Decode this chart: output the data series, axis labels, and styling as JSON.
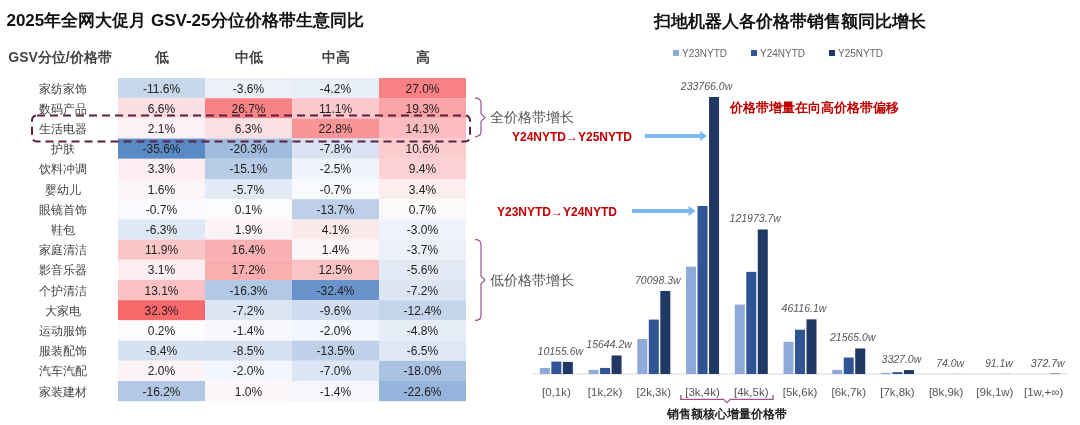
{
  "chart_data": [
    {
      "type": "heatmap",
      "title": "2025年全网大促月 GSV-25分位价格带生意同比",
      "ylabel": "GSV分位/价格带",
      "categories": [
        "低",
        "中低",
        "中高",
        "高"
      ],
      "y_categories": [
        "家纺家饰",
        "数码产品",
        "生活电器",
        "护肤",
        "饮料冲调",
        "婴幼儿",
        "眼镜首饰",
        "鞋包",
        "家庭清洁",
        "影音乐器",
        "个护清洁",
        "大家电",
        "运动服饰",
        "服装配饰",
        "汽车汽配",
        "家装建材"
      ],
      "cells": [
        [
          -11.6,
          -3.6,
          -4.2,
          27.0
        ],
        [
          6.6,
          26.7,
          11.1,
          19.3
        ],
        [
          2.1,
          6.3,
          22.8,
          14.1
        ],
        [
          -35.6,
          -20.3,
          -7.8,
          10.6
        ],
        [
          3.3,
          -15.1,
          -2.5,
          9.4
        ],
        [
          1.6,
          -5.7,
          -0.7,
          3.4
        ],
        [
          -0.7,
          0.1,
          -13.7,
          0.7
        ],
        [
          -6.3,
          1.9,
          4.1,
          -3.0
        ],
        [
          11.9,
          16.4,
          1.4,
          -3.7
        ],
        [
          3.1,
          17.2,
          12.5,
          -5.6
        ],
        [
          13.1,
          -16.3,
          -32.4,
          -7.2
        ],
        [
          32.3,
          -7.2,
          -9.6,
          -12.4
        ],
        [
          0.2,
          -1.4,
          -2.0,
          -4.8
        ],
        [
          -8.4,
          -8.5,
          -13.5,
          -6.5
        ],
        [
          2.0,
          -2.0,
          -7.0,
          -18.0
        ],
        [
          -16.2,
          1.0,
          -1.4,
          -22.6
        ]
      ],
      "cell_labels": [
        [
          "-11.6%",
          "-3.6%",
          "-4.2%",
          "27.0%"
        ],
        [
          "6.6%",
          "26.7%",
          "11.1%",
          "19.3%"
        ],
        [
          "2.1%",
          "6.3%",
          "22.8%",
          "14.1%"
        ],
        [
          "-35.6%",
          "-20.3%",
          "-7.8%",
          "10.6%"
        ],
        [
          "3.3%",
          "-15.1%",
          "-2.5%",
          "9.4%"
        ],
        [
          "1.6%",
          "-5.7%",
          "-0.7%",
          "3.4%"
        ],
        [
          "-0.7%",
          "0.1%",
          "-13.7%",
          "0.7%"
        ],
        [
          "-6.3%",
          "1.9%",
          "4.1%",
          "-3.0%"
        ],
        [
          "11.9%",
          "16.4%",
          "1.4%",
          "-3.7%"
        ],
        [
          "3.1%",
          "17.2%",
          "12.5%",
          "-5.6%"
        ],
        [
          "13.1%",
          "-16.3%",
          "-32.4%",
          "-7.2%"
        ],
        [
          "32.3%",
          "-7.2%",
          "-9.6%",
          "-12.4%"
        ],
        [
          "0.2%",
          "-1.4%",
          "-2.0%",
          "-4.8%"
        ],
        [
          "-8.4%",
          "-8.5%",
          "-13.5%",
          "-6.5%"
        ],
        [
          "2.0%",
          "-2.0%",
          "-7.0%",
          "-18.0%"
        ],
        [
          "-16.2%",
          "1.0%",
          "-1.4%",
          "-22.6%"
        ]
      ],
      "annotations": [
        "全价格带增长",
        "低价格带增长"
      ]
    },
    {
      "type": "bar",
      "title": "扫地机器人各价格带销售额同比增长",
      "legend": "top",
      "categories": [
        "[0,1k)",
        "[1k,2k)",
        "[2k,3k)",
        "[3k,4k)",
        "[4k,5k)",
        "[5k,6k)",
        "[6k,7k)",
        "[7k,8k)",
        "[8k,9k)",
        "[9k,1w)",
        "[1w,+∞)"
      ],
      "series": [
        {
          "name": "Y23NYTD",
          "color": "#8eaadb",
          "values": [
            5100,
            3500,
            29500,
            90600,
            58600,
            27200,
            3500,
            950,
            null,
            null,
            null
          ]
        },
        {
          "name": "Y24NYTD",
          "color": "#2f5597",
          "values": [
            10500,
            5100,
            45900,
            141800,
            86200,
            37400,
            13900,
            1600,
            null,
            null,
            null
          ]
        },
        {
          "name": "Y25NYTD",
          "color": "#203864",
          "values": [
            10155.6,
            15644.2,
            70098.3,
            233766.0,
            121973.7,
            46116.1,
            21565.0,
            3327.0,
            74.0,
            91.1,
            372.7
          ],
          "value_labels": [
            "10155.6w",
            "15644.2w",
            "70098.3w",
            "233766.0w",
            "121973.7w",
            "46116.1w",
            "21565.0w",
            "3327.0w",
            "74.0w",
            "91.1w",
            "372.7w"
          ]
        }
      ],
      "annotations": [
        "价格带增量在向高价格带偏移",
        "Y24NYTD→Y25NYTD",
        "Y23NYTD→Y24NYTD",
        "销售额核心增量价格带"
      ]
    }
  ]
}
